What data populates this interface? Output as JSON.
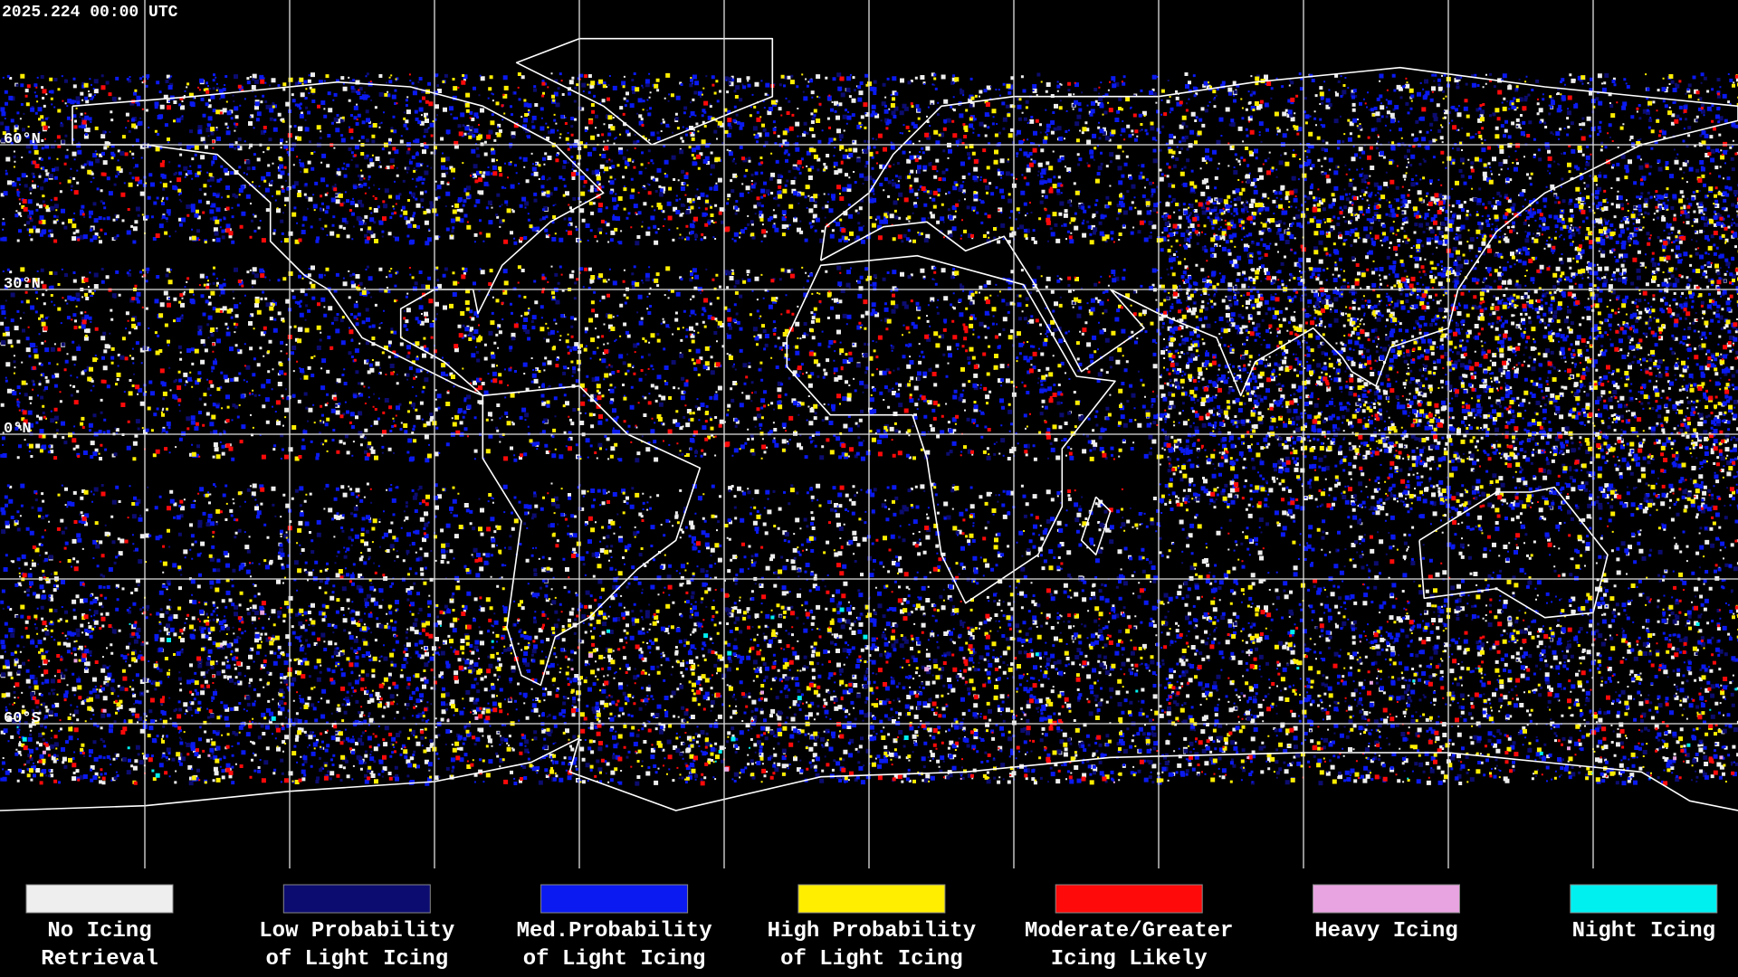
{
  "header": {
    "timestamp": "2025.224 00:00 UTC"
  },
  "latitude_labels": [
    "60°N",
    "30°N",
    "0°N",
    "60°S"
  ],
  "legend": [
    {
      "label": [
        "No Icing",
        "Retrieval"
      ],
      "color": "#eeeeee"
    },
    {
      "label": [
        "Low Probability",
        "of Light Icing"
      ],
      "color": "#0c0c70"
    },
    {
      "label": [
        "Med.Probability",
        "of Light Icing"
      ],
      "color": "#0a1af0"
    },
    {
      "label": [
        "High Probability",
        "of Light Icing"
      ],
      "color": "#ffee00"
    },
    {
      "label": [
        "Moderate/Greater",
        "Icing Likely"
      ],
      "color": "#ff0a0a"
    },
    {
      "label": [
        "Heavy Icing"
      ],
      "color": "#e8a4e0"
    },
    {
      "label": [
        "Night Icing"
      ],
      "color": "#00f0f0"
    }
  ]
}
